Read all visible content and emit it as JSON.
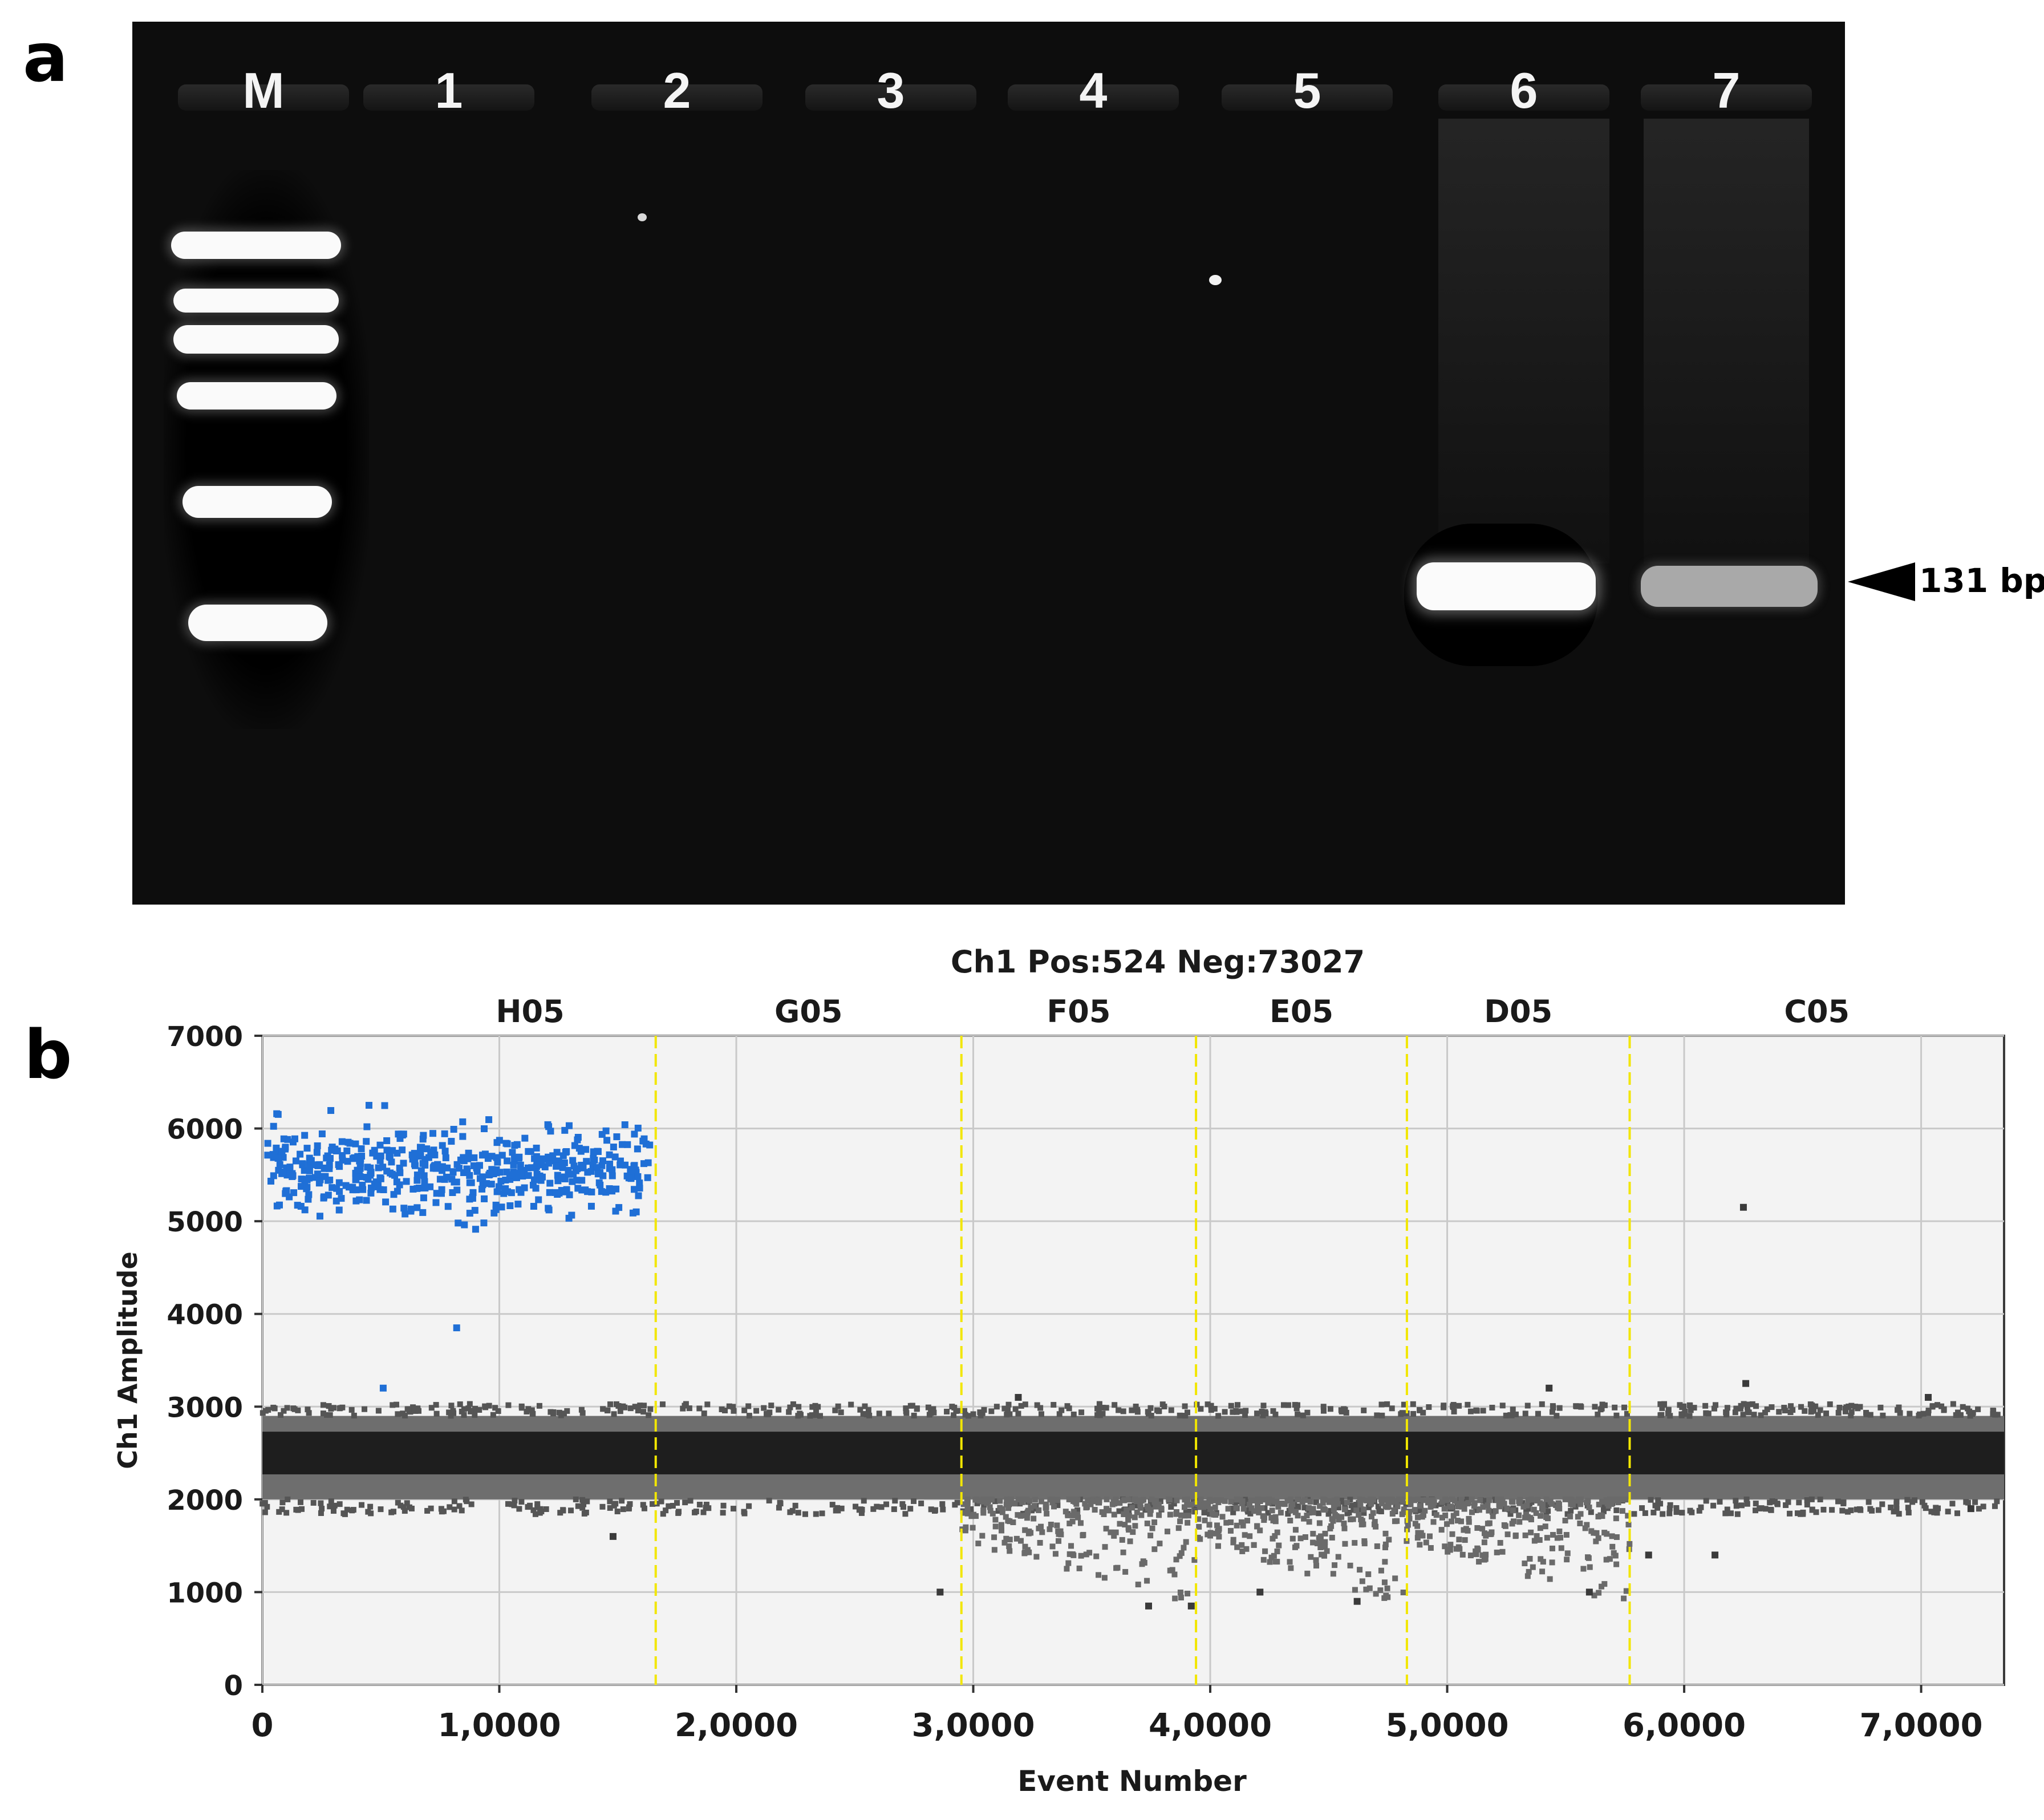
{
  "panel_a": {
    "letter": "a",
    "lanes": [
      "M",
      "1",
      "2",
      "3",
      "4",
      "5",
      "6",
      "7"
    ],
    "band_annotation": "131 bp"
  },
  "panel_b": {
    "letter": "b"
  },
  "chart_data": {
    "type": "scatter",
    "title": "Ch1 Pos:524 Neg:73027",
    "xlabel": "Event Number",
    "ylabel": "Ch1 Amplitude",
    "xlim": [
      0,
      73500
    ],
    "ylim": [
      0,
      7000
    ],
    "x_ticks": [
      0,
      10000,
      20000,
      30000,
      40000,
      50000,
      60000,
      70000
    ],
    "x_tick_labels": [
      "0",
      "1,0000",
      "2,0000",
      "3,0000",
      "4,0000",
      "5,0000",
      "6,0000",
      "7,0000"
    ],
    "y_ticks": [
      0,
      1000,
      2000,
      3000,
      4000,
      5000,
      6000,
      7000
    ],
    "y_tick_labels": [
      "0",
      "1000",
      "2000",
      "3000",
      "4000",
      "5000",
      "6000",
      "7000"
    ],
    "grid": true,
    "wells": [
      {
        "name": "H05",
        "start": 0,
        "end": 16600
      },
      {
        "name": "G05",
        "start": 16600,
        "end": 29500
      },
      {
        "name": "F05",
        "start": 29500,
        "end": 39400
      },
      {
        "name": "E05",
        "start": 39400,
        "end": 48300
      },
      {
        "name": "D05",
        "start": 48300,
        "end": 57700
      },
      {
        "name": "C05",
        "start": 57700,
        "end": 73500
      }
    ],
    "well_divider_color": "#f2e600",
    "positive_color": "#1f6fd6",
    "negative_color": "#3a3a3a",
    "positive_cluster": {
      "x_range": [
        0,
        16600
      ],
      "amplitude_center": 5550,
      "amplitude_spread": [
        4500,
        6250
      ],
      "count": 524
    },
    "negative_band": {
      "x_range": [
        0,
        73500
      ],
      "amplitude_center": 2500,
      "amplitude_spread": [
        2000,
        2900
      ],
      "count": 73027
    },
    "outliers": [
      {
        "x": 8200,
        "y": 3850,
        "positive": true
      },
      {
        "x": 5100,
        "y": 3200,
        "positive": true
      },
      {
        "x": 62500,
        "y": 5150,
        "positive": false
      },
      {
        "x": 62600,
        "y": 3250,
        "positive": false
      },
      {
        "x": 54300,
        "y": 3200,
        "positive": false
      },
      {
        "x": 70300,
        "y": 3100,
        "positive": false
      },
      {
        "x": 31900,
        "y": 3100,
        "positive": false
      },
      {
        "x": 14800,
        "y": 1600,
        "positive": false
      },
      {
        "x": 28600,
        "y": 1000,
        "positive": false
      },
      {
        "x": 42100,
        "y": 1000,
        "positive": false
      },
      {
        "x": 46200,
        "y": 900,
        "positive": false
      },
      {
        "x": 56000,
        "y": 1000,
        "positive": false
      },
      {
        "x": 58500,
        "y": 1400,
        "positive": false
      },
      {
        "x": 61300,
        "y": 1400,
        "positive": false
      },
      {
        "x": 37400,
        "y": 850,
        "positive": false
      },
      {
        "x": 39200,
        "y": 850,
        "positive": false
      },
      {
        "x": 72100,
        "y": 1900,
        "positive": false
      }
    ]
  }
}
